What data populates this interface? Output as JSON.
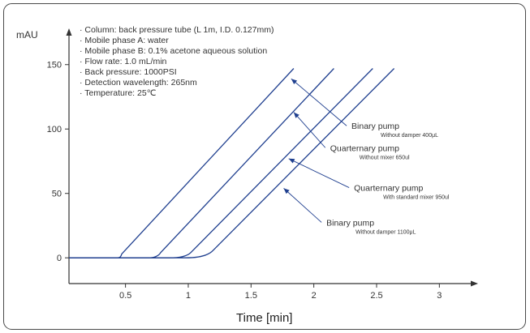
{
  "chart_data": {
    "type": "line",
    "ylabel": "mAU",
    "xlabel": "Time [min]",
    "xlim": [
      0.05,
      3.25
    ],
    "ylim": [
      -20,
      175
    ],
    "xticks": [
      0.5,
      1,
      1.5,
      2,
      2.5,
      3
    ],
    "xtick_labels": [
      "0.5",
      "1",
      "1.5",
      "2",
      "2.5",
      "3"
    ],
    "yticks": [
      0,
      50,
      100,
      150
    ],
    "ytick_labels": [
      "0",
      "50",
      "100",
      "150"
    ],
    "conditions": [
      "· Column: back pressure tube (L 1m, I.D. 0.127mm)",
      "· Mobile phase A: water",
      "· Mobile phase B: 0.1% acetone aqueous solution",
      "· Flow rate: 1.0 mL/min",
      "· Back pressure: 1000PSI",
      "· Detection wavelength: 265nm",
      "· Temperature: 25℃"
    ],
    "series": [
      {
        "name": "Binary pump",
        "sublabel": "Without damper 400μL",
        "x": [
          0.05,
          0.44,
          0.47,
          1.84
        ],
        "y": [
          0,
          0,
          3,
          147
        ],
        "label_anchor": [
          2.3,
          100
        ],
        "arrow_target": [
          1.82,
          139
        ]
      },
      {
        "name": "Quarternary pump",
        "sublabel": "Without mixer 650ul",
        "x": [
          0.05,
          0.68,
          0.78,
          2.16
        ],
        "y": [
          0,
          0,
          4,
          147
        ],
        "label_anchor": [
          2.13,
          83
        ],
        "arrow_target": [
          1.84,
          113
        ]
      },
      {
        "name": "Quarternary pump",
        "sublabel": "With standard mixer 950ul",
        "x": [
          0.05,
          0.85,
          1.02,
          2.47
        ],
        "y": [
          0,
          0,
          4,
          147
        ],
        "label_anchor": [
          2.32,
          52
        ],
        "arrow_target": [
          1.8,
          77
        ]
      },
      {
        "name": "Binary pump",
        "sublabel": "Without damper 1100μL",
        "x": [
          0.05,
          0.98,
          1.2,
          2.64
        ],
        "y": [
          0,
          0,
          6,
          147
        ],
        "label_anchor": [
          2.1,
          25
        ],
        "arrow_target": [
          1.76,
          54
        ]
      }
    ],
    "colors": {
      "curve": "#1f3f8f",
      "axis": "#333333",
      "text": "#333333"
    },
    "grid": false
  }
}
